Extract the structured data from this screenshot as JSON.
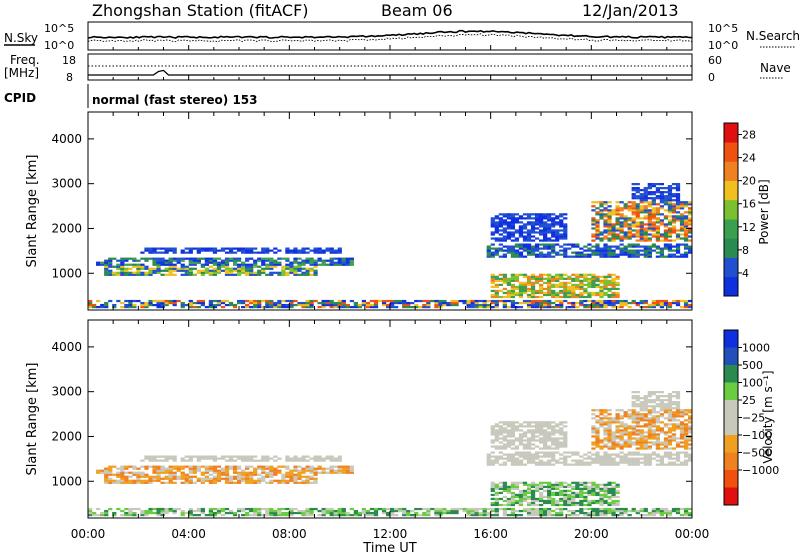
{
  "header": {
    "station": "Zhongshan Station (fitACF)",
    "beam": "Beam 06",
    "date": "12/Jan/2013"
  },
  "strip": {
    "nsky_label": "N.Sky",
    "nsearch_label": "N.Search",
    "freq_label_1": "Freq.",
    "freq_label_2": "[MHz]",
    "nave_label": "Nave",
    "cpid_label": "CPID",
    "cpid_text": "normal (fast stereo) 153",
    "noise_ticks": [
      "10^5",
      "10^0"
    ],
    "freq_ticks": [
      "18",
      "8"
    ],
    "nave_ticks": [
      "60",
      "0"
    ]
  },
  "colors": {
    "power": [
      "#1030e0",
      "#2050d0",
      "#2a8a50",
      "#3aa050",
      "#7ac030",
      "#f0c020",
      "#f08020",
      "#f05010",
      "#e01010"
    ],
    "velocity": [
      "#1030e0",
      "#2050b8",
      "#2a8a50",
      "#6acc40",
      "#c8c8bc",
      "#c8c8bc",
      "#f0a020",
      "#f08020",
      "#f05010",
      "#e01010"
    ]
  },
  "chart_data": [
    {
      "type": "heatmap",
      "panel": "power",
      "xlabel": "",
      "ylabel": "Slant Range [km]",
      "x_ticks": [
        "00:00",
        "04:00",
        "08:00",
        "12:00",
        "16:00",
        "20:00",
        "00:00"
      ],
      "x_range_hours": [
        0,
        24
      ],
      "y_range_km": [
        180,
        4600
      ],
      "y_ticks": [
        1000,
        2000,
        3000,
        4000
      ],
      "colorbar": {
        "label": "Power [dB]",
        "ticks": [
          4,
          8,
          12,
          16,
          20,
          24,
          28
        ],
        "range": [
          0,
          30
        ]
      }
    },
    {
      "type": "heatmap",
      "panel": "velocity",
      "xlabel": "Time UT",
      "ylabel": "Slant Range [km]",
      "x_ticks": [
        "00:00",
        "04:00",
        "08:00",
        "12:00",
        "16:00",
        "20:00",
        "00:00"
      ],
      "x_range_hours": [
        0,
        24
      ],
      "y_range_km": [
        180,
        4600
      ],
      "y_ticks": [
        1000,
        2000,
        3000,
        4000
      ],
      "colorbar": {
        "label": "Velocity [m s⁻¹]",
        "ticks": [
          "1000",
          "500",
          "100",
          "25",
          "−25",
          "−100",
          "−500",
          "−1000"
        ]
      }
    }
  ]
}
